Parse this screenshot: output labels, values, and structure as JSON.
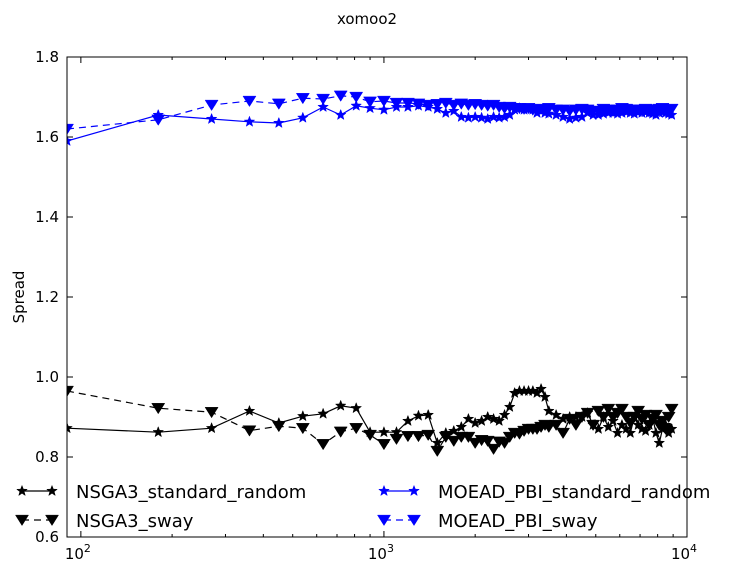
{
  "chart_data": {
    "type": "line",
    "title": "xomoo2",
    "xlabel": "",
    "ylabel": "Spread",
    "xscale": "log",
    "xlim": [
      90,
      10000
    ],
    "ylim": [
      0.6,
      1.8
    ],
    "y_ticks": [
      {
        "value": 0.6,
        "label": "0.6"
      },
      {
        "value": 0.8,
        "label": "0.8"
      },
      {
        "value": 1.0,
        "label": "1.0"
      },
      {
        "value": 1.2,
        "label": "1.2"
      },
      {
        "value": 1.4,
        "label": "1.4"
      },
      {
        "value": 1.6,
        "label": "1.6"
      },
      {
        "value": 1.8,
        "label": "1.8"
      }
    ],
    "x_ticks": [
      {
        "value": 100,
        "base": "10",
        "exp": "2"
      },
      {
        "value": 1000,
        "base": "10",
        "exp": "3"
      },
      {
        "value": 10000,
        "base": "10",
        "exp": "4"
      }
    ],
    "grid": false,
    "legend_position": "lower-left",
    "series": [
      {
        "name": "NSGA3_standard_random",
        "color": "#000000",
        "linestyle": "solid",
        "marker": "star",
        "x": [
          90,
          180,
          270,
          360,
          450,
          540,
          630,
          720,
          810,
          900,
          1000,
          1100,
          1200,
          1300,
          1400,
          1500,
          1600,
          1700,
          1800,
          1900,
          2000,
          2100,
          2200,
          2300,
          2400,
          2500,
          2600,
          2700,
          2800,
          2900,
          3000,
          3100,
          3200,
          3300,
          3400,
          3500,
          3700,
          3900,
          4100,
          4300,
          4500,
          4700,
          4900,
          5100,
          5300,
          5500,
          5700,
          5900,
          6100,
          6300,
          6500,
          6700,
          6900,
          7100,
          7300,
          7500,
          7700,
          7900,
          8100,
          8300,
          8500,
          8700,
          8900
        ],
        "values": [
          0.872,
          0.862,
          0.872,
          0.915,
          0.885,
          0.902,
          0.908,
          0.928,
          0.922,
          0.862,
          0.862,
          0.862,
          0.89,
          0.903,
          0.905,
          0.835,
          0.86,
          0.865,
          0.875,
          0.895,
          0.885,
          0.89,
          0.9,
          0.895,
          0.89,
          0.905,
          0.925,
          0.96,
          0.965,
          0.965,
          0.965,
          0.965,
          0.96,
          0.97,
          0.95,
          0.915,
          0.905,
          0.895,
          0.9,
          0.9,
          0.9,
          0.91,
          0.88,
          0.87,
          0.9,
          0.875,
          0.89,
          0.86,
          0.88,
          0.87,
          0.86,
          0.9,
          0.88,
          0.87,
          0.865,
          0.88,
          0.9,
          0.86,
          0.835,
          0.87,
          0.88,
          0.86,
          0.87
        ]
      },
      {
        "name": "NSGA3_sway",
        "color": "#000000",
        "linestyle": "dashed",
        "marker": "triangle-down",
        "x": [
          90,
          180,
          270,
          360,
          450,
          540,
          630,
          720,
          810,
          900,
          1000,
          1100,
          1200,
          1300,
          1400,
          1500,
          1600,
          1700,
          1800,
          1900,
          2000,
          2100,
          2200,
          2300,
          2400,
          2500,
          2600,
          2700,
          2800,
          2900,
          3000,
          3100,
          3200,
          3300,
          3400,
          3500,
          3700,
          3900,
          4100,
          4300,
          4500,
          4700,
          4900,
          5100,
          5300,
          5500,
          5700,
          5900,
          6100,
          6300,
          6500,
          6700,
          6900,
          7100,
          7300,
          7500,
          7700,
          7900,
          8100,
          8300,
          8500,
          8700,
          8900
        ],
        "values": [
          0.965,
          0.922,
          0.912,
          0.866,
          0.877,
          0.872,
          0.832,
          0.863,
          0.872,
          0.855,
          0.832,
          0.845,
          0.852,
          0.852,
          0.855,
          0.815,
          0.85,
          0.84,
          0.85,
          0.85,
          0.835,
          0.842,
          0.84,
          0.82,
          0.838,
          0.835,
          0.85,
          0.86,
          0.858,
          0.865,
          0.87,
          0.87,
          0.87,
          0.875,
          0.88,
          0.875,
          0.88,
          0.86,
          0.895,
          0.88,
          0.9,
          0.91,
          0.88,
          0.915,
          0.9,
          0.92,
          0.9,
          0.91,
          0.92,
          0.9,
          0.885,
          0.9,
          0.915,
          0.895,
          0.905,
          0.88,
          0.895,
          0.905,
          0.88,
          0.89,
          0.87,
          0.9,
          0.92
        ]
      },
      {
        "name": "MOEAD_PBI_standard_random",
        "color": "#0000ff",
        "linestyle": "solid",
        "marker": "star",
        "x": [
          90,
          180,
          270,
          360,
          450,
          540,
          630,
          720,
          810,
          900,
          1000,
          1100,
          1200,
          1300,
          1400,
          1500,
          1600,
          1700,
          1800,
          1900,
          2000,
          2100,
          2200,
          2300,
          2400,
          2500,
          2600,
          2700,
          2800,
          2900,
          3000,
          3100,
          3200,
          3300,
          3400,
          3500,
          3700,
          3900,
          4100,
          4300,
          4500,
          4700,
          4900,
          5100,
          5300,
          5500,
          5700,
          5900,
          6100,
          6300,
          6500,
          6700,
          6900,
          7100,
          7300,
          7500,
          7700,
          7900,
          8100,
          8300,
          8500,
          8700,
          8900
        ],
        "values": [
          1.59,
          1.655,
          1.645,
          1.638,
          1.635,
          1.648,
          1.675,
          1.655,
          1.678,
          1.672,
          1.668,
          1.675,
          1.675,
          1.678,
          1.675,
          1.67,
          1.66,
          1.665,
          1.65,
          1.648,
          1.65,
          1.648,
          1.645,
          1.65,
          1.648,
          1.65,
          1.655,
          1.668,
          1.672,
          1.668,
          1.67,
          1.668,
          1.66,
          1.665,
          1.66,
          1.658,
          1.655,
          1.65,
          1.645,
          1.648,
          1.65,
          1.66,
          1.655,
          1.655,
          1.658,
          1.66,
          1.66,
          1.658,
          1.66,
          1.662,
          1.66,
          1.658,
          1.662,
          1.66,
          1.662,
          1.66,
          1.658,
          1.655,
          1.66,
          1.662,
          1.66,
          1.658,
          1.655
        ]
      },
      {
        "name": "MOEAD_PBI_sway",
        "color": "#0000ff",
        "linestyle": "dashed",
        "marker": "triangle-down",
        "x": [
          90,
          180,
          270,
          360,
          450,
          540,
          630,
          720,
          810,
          900,
          1000,
          1100,
          1200,
          1300,
          1400,
          1500,
          1600,
          1700,
          1800,
          1900,
          2000,
          2100,
          2200,
          2300,
          2400,
          2500,
          2600,
          2700,
          2800,
          2900,
          3000,
          3100,
          3200,
          3300,
          3400,
          3500,
          3700,
          3900,
          4100,
          4300,
          4500,
          4700,
          4900,
          5100,
          5300,
          5500,
          5700,
          5900,
          6100,
          6300,
          6500,
          6700,
          6900,
          7100,
          7300,
          7500,
          7700,
          7900,
          8100,
          8300,
          8500,
          8700,
          8900
        ],
        "values": [
          1.62,
          1.643,
          1.68,
          1.69,
          1.683,
          1.697,
          1.695,
          1.703,
          1.7,
          1.688,
          1.69,
          1.685,
          1.685,
          1.683,
          1.68,
          1.682,
          1.685,
          1.68,
          1.683,
          1.68,
          1.682,
          1.68,
          1.678,
          1.68,
          1.675,
          1.672,
          1.675,
          1.672,
          1.672,
          1.67,
          1.672,
          1.668,
          1.668,
          1.67,
          1.668,
          1.672,
          1.668,
          1.668,
          1.665,
          1.668,
          1.67,
          1.668,
          1.665,
          1.665,
          1.67,
          1.668,
          1.665,
          1.668,
          1.672,
          1.67,
          1.668,
          1.665,
          1.668,
          1.668,
          1.67,
          1.665,
          1.668,
          1.665,
          1.67,
          1.672,
          1.668,
          1.665,
          1.67
        ]
      }
    ]
  }
}
